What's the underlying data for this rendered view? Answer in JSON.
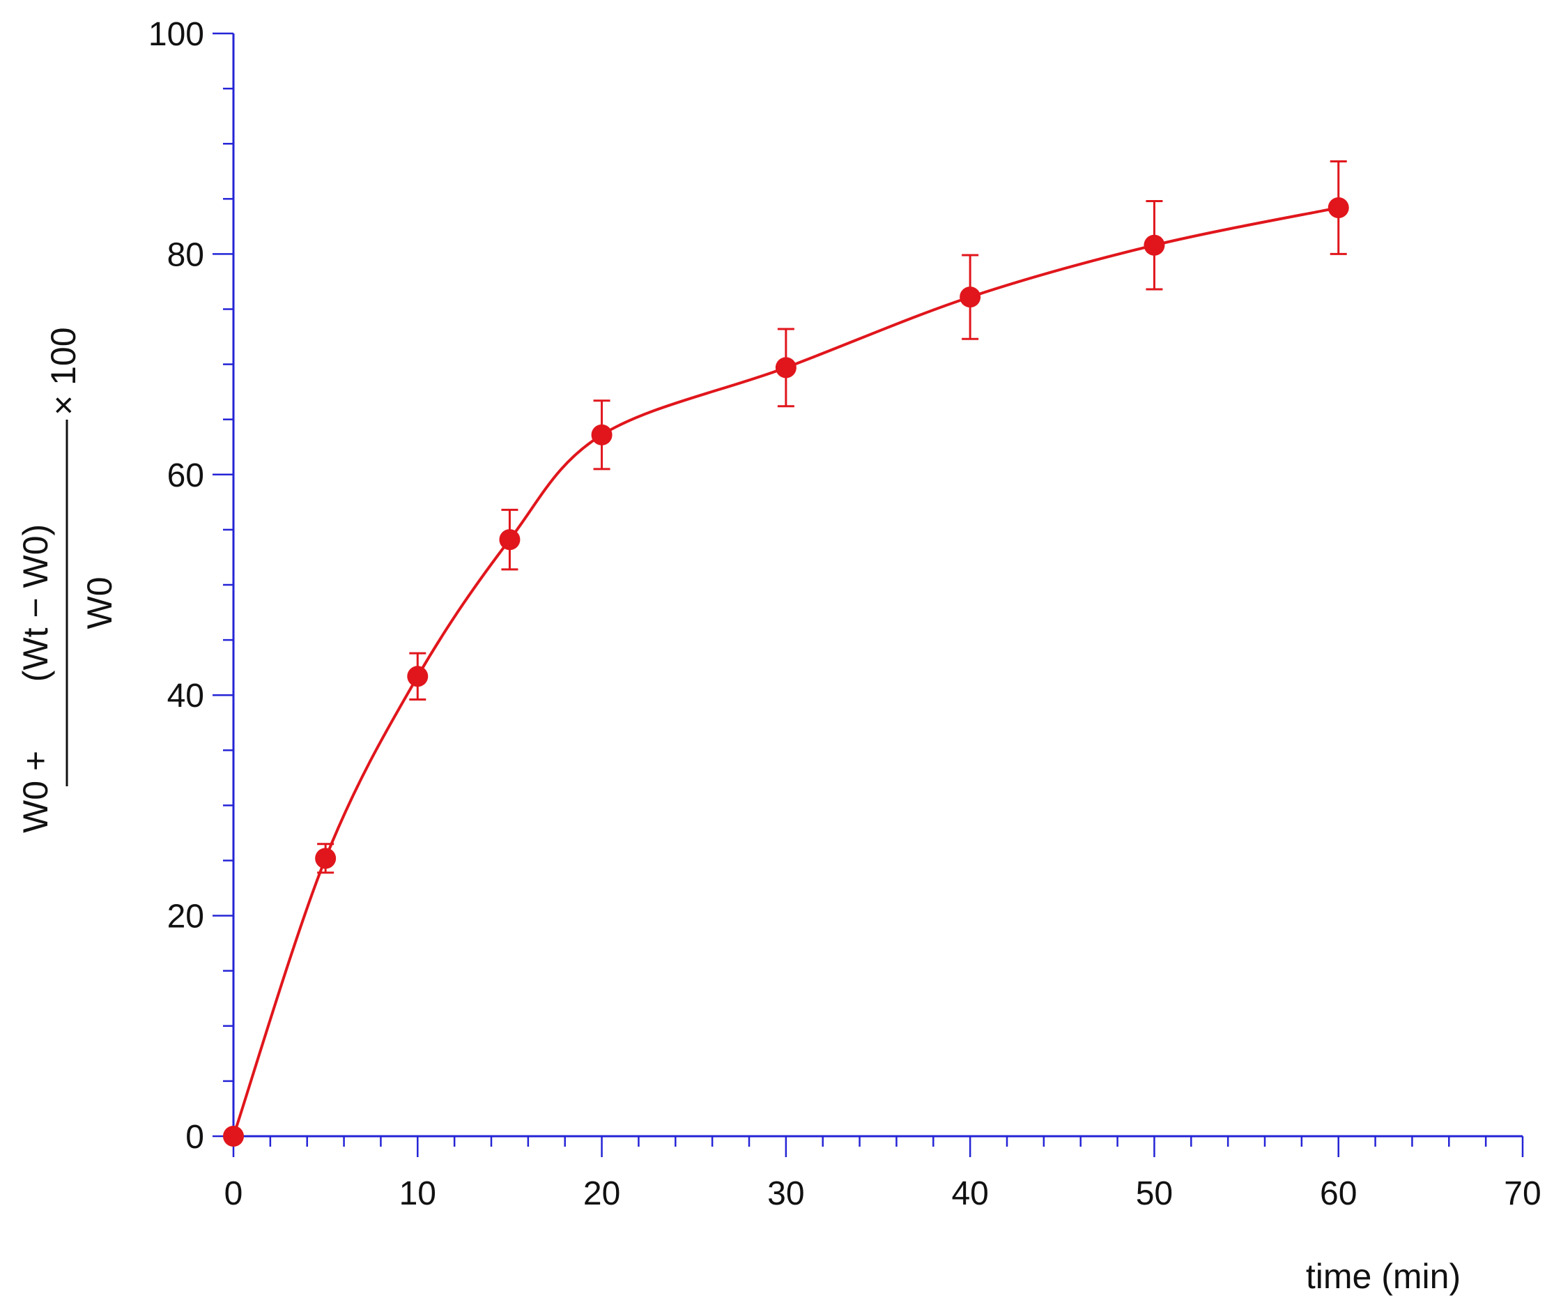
{
  "chart_data": {
    "type": "line",
    "title": "",
    "xlabel": "time (min)",
    "ylabel": {
      "prefix": "W0 + ",
      "numerator": "(Wt − W0)",
      "denominator": "W0",
      "suffix": "× 100"
    },
    "xlim": [
      0,
      70
    ],
    "ylim": [
      0,
      100
    ],
    "x_ticks": [
      "0",
      "10",
      "20",
      "30",
      "40",
      "50",
      "60",
      "70"
    ],
    "y_ticks": [
      "0",
      "20",
      "40",
      "60",
      "80",
      "100"
    ],
    "x_minor_step": 2,
    "y_minor_step": 5,
    "grid": false,
    "series": [
      {
        "marker": "filled-circle",
        "line": "smooth",
        "color": "#e0161c",
        "x": [
          0,
          5,
          10,
          15,
          20,
          30,
          40,
          50,
          60
        ],
        "y": [
          0,
          25.2,
          41.7,
          54.1,
          63.6,
          69.7,
          76.1,
          80.8,
          84.2
        ],
        "error": [
          0,
          1.3,
          2.1,
          2.7,
          3.1,
          3.5,
          3.8,
          4.0,
          4.2
        ]
      }
    ],
    "colors": {
      "axis": "#2424d6",
      "series": "#e0161c",
      "text": "#111111"
    }
  }
}
